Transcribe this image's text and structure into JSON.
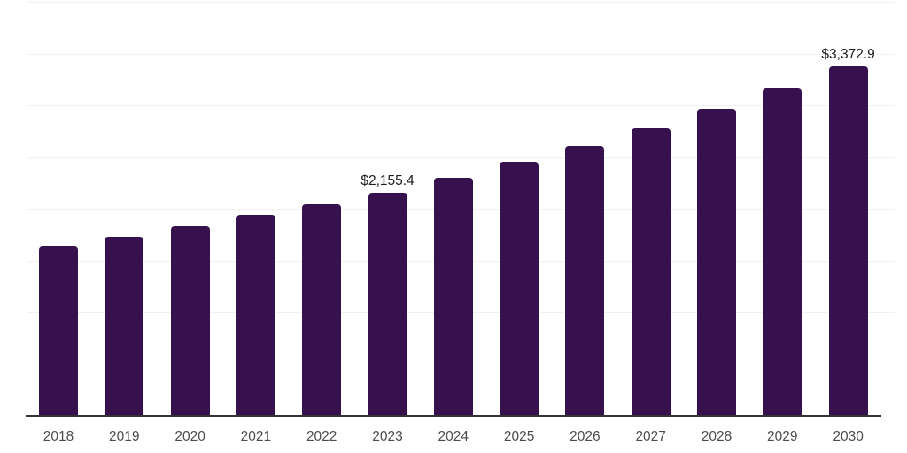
{
  "chart_data": {
    "type": "bar",
    "title": "",
    "xlabel": "",
    "ylabel": "",
    "categories": [
      "2018",
      "2019",
      "2020",
      "2021",
      "2022",
      "2023",
      "2024",
      "2025",
      "2026",
      "2027",
      "2028",
      "2029",
      "2030"
    ],
    "values": [
      1640,
      1730,
      1830,
      1940,
      2045,
      2155.4,
      2297,
      2450,
      2610,
      2780,
      2965,
      3160,
      3372.9
    ],
    "data_labels": {
      "2023": "$2,155.4",
      "2030": "$3,372.9"
    },
    "ylim": [
      0,
      4000
    ],
    "grid_step": 500,
    "grid": true,
    "legend": false,
    "y_tick_labels_visible": false,
    "colors": {
      "bar": "#36114e",
      "axis_line": "#333333",
      "tick_label": "#4c4c4c",
      "data_label": "#1c1c1c",
      "gridline": "#f1f1f1",
      "background": "#ffffff"
    }
  }
}
